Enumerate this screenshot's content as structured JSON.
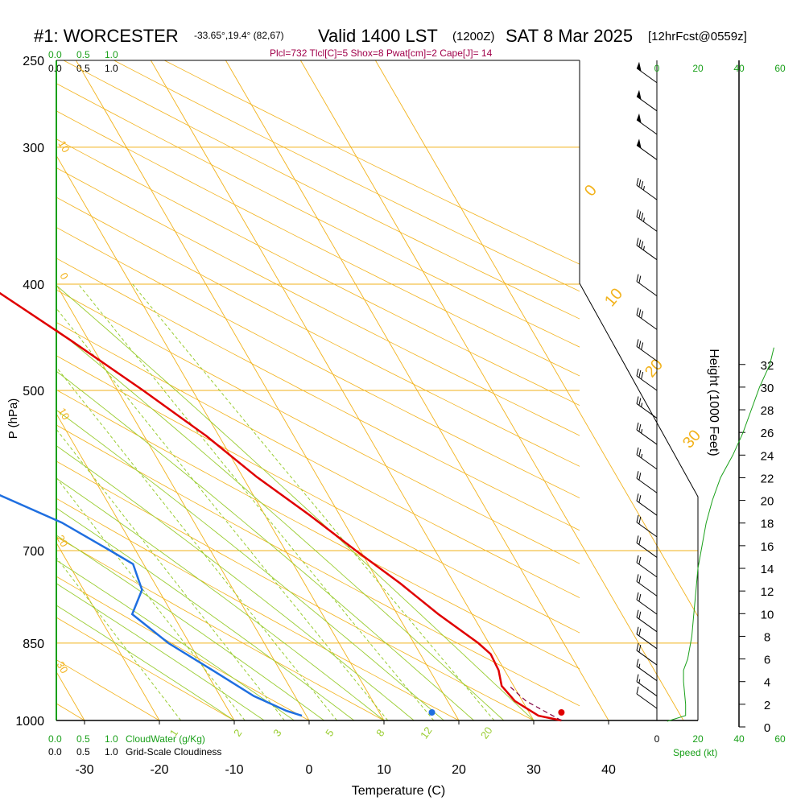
{
  "header": {
    "station": "#1: WORCESTER",
    "coords": "-33.65°,19.4° (82,67)",
    "valid": "Valid 1400 LST",
    "zulu": "(1200Z)",
    "date": "SAT 8 Mar 2025",
    "forecast": "[12hrFcst@0559z]",
    "indices": "Plcl=732 Tlcl[C]=5 Shox=8 Pwat[cm]=2 Cape[J]= 14"
  },
  "colors": {
    "temperature": "#e00000",
    "dewpoint": "#1f6fe0",
    "isobar": "#f2b21b",
    "mixing_ratio": "#9acd32",
    "adiabat": "#9acd32",
    "label_green": "#1aa01a",
    "indices_text": "#a0004a",
    "wind": "#000000"
  },
  "chart_data": {
    "type": "skew-t",
    "xlabel": "Temperature (C)",
    "ylabel": "P (hPa)",
    "y2label": "Height (1000 Feet)",
    "x_ticks": [
      "-30",
      "-20",
      "-10",
      "0",
      "10",
      "20",
      "30",
      "40"
    ],
    "pressure_labels": [
      "250",
      "300",
      "400",
      "500",
      "700",
      "850",
      "1000"
    ],
    "height_ticks": [
      "0",
      "2",
      "4",
      "6",
      "8",
      "10",
      "12",
      "14",
      "16",
      "18",
      "20",
      "22",
      "24",
      "26",
      "28",
      "30",
      "32"
    ],
    "mixing_ratio_labels": [
      "1",
      "2",
      "3",
      "5",
      "8",
      "12",
      "20"
    ],
    "isotherm_labels_right": [
      "0",
      "10",
      "20",
      "30"
    ],
    "isotherm_labels_left": [
      "10",
      "0",
      "10",
      "20",
      "30"
    ],
    "top_scale": [
      "0.0",
      "0.5",
      "1.0"
    ],
    "bottom_scale": [
      "0.0",
      "0.5",
      "1.0"
    ],
    "cloudwater_label": "CloudWater (g/Kg)",
    "cloudiness_label": "Grid-Scale Cloudiness",
    "speed_ticks": [
      "0",
      "20",
      "40",
      "60"
    ],
    "speed_label": "Speed (kt)",
    "temperature_profile": [
      {
        "p": 1000,
        "t": 33.7
      },
      {
        "p": 990,
        "t": 31.0
      },
      {
        "p": 960,
        "t": 29.0
      },
      {
        "p": 930,
        "t": 28.4
      },
      {
        "p": 900,
        "t": 29.2
      },
      {
        "p": 870,
        "t": 29.4
      },
      {
        "p": 850,
        "t": 28.6
      },
      {
        "p": 800,
        "t": 25.5
      },
      {
        "p": 750,
        "t": 22.8
      },
      {
        "p": 700,
        "t": 19.4
      },
      {
        "p": 650,
        "t": 16.0
      },
      {
        "p": 600,
        "t": 11.9
      },
      {
        "p": 550,
        "t": 8.3
      },
      {
        "p": 500,
        "t": 3.4
      },
      {
        "p": 450,
        "t": -2.4
      },
      {
        "p": 400,
        "t": -9.3
      },
      {
        "p": 350,
        "t": -17.4
      },
      {
        "p": 300,
        "t": -27.4
      },
      {
        "p": 265,
        "t": -35.8
      }
    ],
    "dewpoint_profile": [
      {
        "p": 990,
        "t": -0.6
      },
      {
        "p": 980,
        "t": -2.3
      },
      {
        "p": 950,
        "t": -5.5
      },
      {
        "p": 900,
        "t": -9.0
      },
      {
        "p": 850,
        "t": -12.8
      },
      {
        "p": 800,
        "t": -15.4
      },
      {
        "p": 760,
        "t": -12.2
      },
      {
        "p": 720,
        "t": -11.4
      },
      {
        "p": 700,
        "t": -13.4
      },
      {
        "p": 660,
        "t": -17.7
      },
      {
        "p": 620,
        "t": -24.4
      },
      {
        "p": 580,
        "t": -33.3
      },
      {
        "p": 540,
        "t": -42.0
      },
      {
        "p": 500,
        "t": -45.0
      },
      {
        "p": 450,
        "t": -45.1
      },
      {
        "p": 420,
        "t": -46.3
      },
      {
        "p": 400,
        "t": -48.9
      },
      {
        "p": 380,
        "t": -52.3
      },
      {
        "p": 350,
        "t": -57.6
      },
      {
        "p": 300,
        "t": -69.3
      },
      {
        "p": 265,
        "t": -77.7
      }
    ],
    "surface_parcel_temp_c": 33.7,
    "surface_dewpoint_c": 16.4,
    "winds": [
      {
        "p": 262,
        "speed_kt": 50,
        "dir_deg": 305
      },
      {
        "p": 278,
        "speed_kt": 50,
        "dir_deg": 305
      },
      {
        "p": 292,
        "speed_kt": 50,
        "dir_deg": 305
      },
      {
        "p": 308,
        "speed_kt": 50,
        "dir_deg": 305
      },
      {
        "p": 335,
        "speed_kt": 35,
        "dir_deg": 300
      },
      {
        "p": 358,
        "speed_kt": 35,
        "dir_deg": 300
      },
      {
        "p": 380,
        "speed_kt": 35,
        "dir_deg": 300
      },
      {
        "p": 410,
        "speed_kt": 20,
        "dir_deg": 300
      },
      {
        "p": 440,
        "speed_kt": 30,
        "dir_deg": 300
      },
      {
        "p": 470,
        "speed_kt": 30,
        "dir_deg": 300
      },
      {
        "p": 500,
        "speed_kt": 30,
        "dir_deg": 300
      },
      {
        "p": 530,
        "speed_kt": 25,
        "dir_deg": 300
      },
      {
        "p": 560,
        "speed_kt": 25,
        "dir_deg": 300
      },
      {
        "p": 590,
        "speed_kt": 25,
        "dir_deg": 300
      },
      {
        "p": 620,
        "speed_kt": 20,
        "dir_deg": 300
      },
      {
        "p": 650,
        "speed_kt": 20,
        "dir_deg": 300
      },
      {
        "p": 680,
        "speed_kt": 20,
        "dir_deg": 300
      },
      {
        "p": 710,
        "speed_kt": 20,
        "dir_deg": 305
      },
      {
        "p": 740,
        "speed_kt": 20,
        "dir_deg": 305
      },
      {
        "p": 770,
        "speed_kt": 20,
        "dir_deg": 305
      },
      {
        "p": 800,
        "speed_kt": 20,
        "dir_deg": 305
      },
      {
        "p": 830,
        "speed_kt": 20,
        "dir_deg": 305
      },
      {
        "p": 860,
        "speed_kt": 20,
        "dir_deg": 310
      },
      {
        "p": 890,
        "speed_kt": 20,
        "dir_deg": 310
      },
      {
        "p": 920,
        "speed_kt": 15,
        "dir_deg": 310
      },
      {
        "p": 950,
        "speed_kt": 15,
        "dir_deg": 310
      },
      {
        "p": 975,
        "speed_kt": 10,
        "dir_deg": 310
      }
    ],
    "speed_profile": [
      {
        "h": 0.5,
        "kt": 5
      },
      {
        "h": 1.0,
        "kt": 14
      },
      {
        "h": 2.0,
        "kt": 14
      },
      {
        "h": 4.0,
        "kt": 13
      },
      {
        "h": 5.0,
        "kt": 13
      },
      {
        "h": 6.0,
        "kt": 15
      },
      {
        "h": 8.0,
        "kt": 17
      },
      {
        "h": 10.0,
        "kt": 18
      },
      {
        "h": 12.0,
        "kt": 19
      },
      {
        "h": 14.0,
        "kt": 20
      },
      {
        "h": 16.0,
        "kt": 22
      },
      {
        "h": 18.0,
        "kt": 24
      },
      {
        "h": 20.0,
        "kt": 27
      },
      {
        "h": 22.0,
        "kt": 31
      },
      {
        "h": 24.0,
        "kt": 37
      },
      {
        "h": 26.0,
        "kt": 42
      },
      {
        "h": 28.0,
        "kt": 46
      },
      {
        "h": 30.0,
        "kt": 50
      },
      {
        "h": 32.0,
        "kt": 55
      },
      {
        "h": 33.5,
        "kt": 57
      }
    ]
  }
}
